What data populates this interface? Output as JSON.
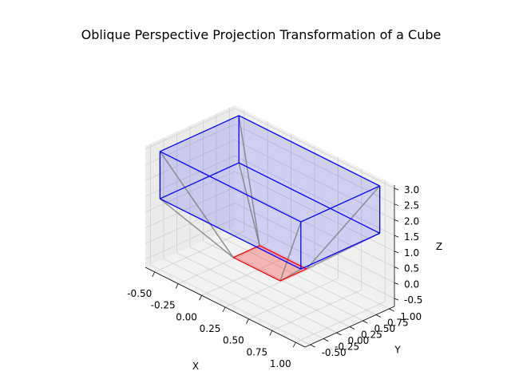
{
  "chart_data": {
    "type": "3d-line",
    "title": "Oblique Perspective Projection Transformation of a Cube",
    "xlabel": "X",
    "ylabel": "Y",
    "zlabel": "Z",
    "xlim": [
      -0.6,
      1.1
    ],
    "ylim": [
      -0.6,
      1.1
    ],
    "zlim": [
      -0.75,
      3.1
    ],
    "x_ticks": [
      "-0.50",
      "-0.25",
      "0.00",
      "0.25",
      "0.50",
      "0.75",
      "1.00"
    ],
    "y_ticks": [
      "-0.50",
      "-0.25",
      "0.00",
      "0.25",
      "0.50",
      "0.75",
      "1.00"
    ],
    "z_ticks": [
      "-0.5",
      "0.0",
      "0.5",
      "1.0",
      "1.5",
      "2.0",
      "2.5",
      "3.0"
    ],
    "grid": true,
    "series": [
      {
        "role": "original-cube",
        "color": "#0000ff",
        "fill": "#0000ff",
        "vertices": [
          [
            -0.5,
            -0.5,
            1.5
          ],
          [
            1.0,
            -0.5,
            1.5
          ],
          [
            1.0,
            1.0,
            1.5
          ],
          [
            -0.5,
            1.0,
            1.5
          ],
          [
            -0.5,
            -0.5,
            3.0
          ],
          [
            1.0,
            -0.5,
            3.0
          ],
          [
            1.0,
            1.0,
            3.0
          ],
          [
            -0.5,
            1.0,
            3.0
          ]
        ]
      },
      {
        "role": "projected-square",
        "color": "#ff0000",
        "fill": "#ff0000",
        "vertices": [
          [
            0.0,
            0.0,
            0.0
          ],
          [
            0.5,
            0.0,
            0.0
          ],
          [
            0.5,
            0.5,
            0.0
          ],
          [
            0.0,
            0.5,
            0.0
          ]
        ]
      },
      {
        "role": "projection-lines",
        "color": "#808080"
      }
    ]
  }
}
